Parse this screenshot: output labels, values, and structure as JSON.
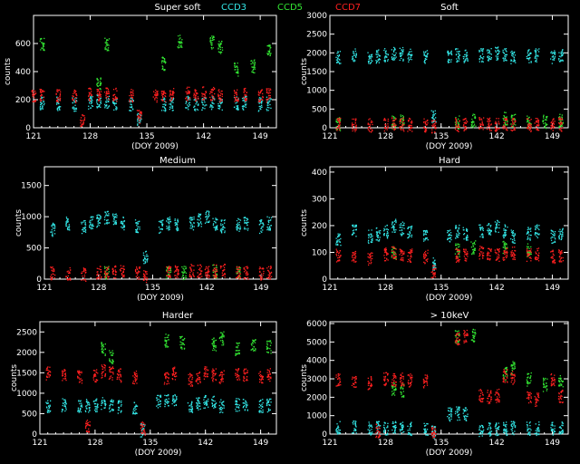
{
  "legend": [
    {
      "label": "CCD3",
      "color": "#33e6e6"
    },
    {
      "label": "CCD5",
      "color": "#33e633"
    },
    {
      "label": "CCD7",
      "color": "#ff2020"
    }
  ],
  "chart_data": [
    {
      "type": "scatter",
      "title": "Super soft",
      "xlabel": "(DOY 2009)",
      "ylabel": "counts",
      "xlim": [
        121,
        151
      ],
      "ylim": [
        0,
        800
      ],
      "xticks": [
        121,
        128,
        135,
        142,
        149
      ],
      "yticks": [
        0,
        200,
        400,
        600
      ],
      "series": [
        {
          "name": "CCD3",
          "color": "#33e6e6",
          "x": [
            122,
            124,
            126,
            128,
            129,
            130,
            131,
            133,
            134,
            137,
            138,
            140,
            141,
            142,
            143,
            144,
            146,
            147,
            149,
            150
          ],
          "y": [
            180,
            175,
            170,
            185,
            190,
            180,
            175,
            170,
            60,
            170,
            175,
            180,
            170,
            175,
            180,
            170,
            175,
            180,
            170,
            175
          ]
        },
        {
          "name": "CCD5",
          "color": "#33e633",
          "x": [
            122,
            129,
            130,
            137,
            139,
            143,
            144,
            146,
            148,
            150
          ],
          "y": [
            600,
            310,
            600,
            460,
            620,
            610,
            580,
            420,
            440,
            560
          ]
        },
        {
          "name": "CCD7",
          "color": "#ff2020",
          "x": [
            121,
            122,
            124,
            126,
            127,
            128,
            129,
            130,
            131,
            133,
            134,
            136,
            137,
            138,
            140,
            141,
            142,
            143,
            144,
            146,
            147,
            149,
            150
          ],
          "y": [
            230,
            240,
            230,
            225,
            60,
            240,
            245,
            250,
            240,
            230,
            80,
            230,
            235,
            240,
            245,
            240,
            250,
            245,
            230,
            235,
            240,
            230,
            235
          ]
        }
      ]
    },
    {
      "type": "scatter",
      "title": "Soft",
      "xlabel": "(DOY 2009)",
      "ylabel": "counts",
      "xlim": [
        121,
        151
      ],
      "ylim": [
        0,
        3000
      ],
      "xticks": [
        121,
        128,
        135,
        142,
        149
      ],
      "yticks": [
        0,
        500,
        1000,
        1500,
        2000,
        2500,
        3000
      ],
      "series": [
        {
          "name": "CCD3",
          "color": "#33e6e6",
          "x": [
            122,
            124,
            126,
            127,
            128,
            129,
            130,
            131,
            133,
            134,
            136,
            137,
            138,
            140,
            141,
            142,
            143,
            144,
            146,
            147,
            149,
            150
          ],
          "y": [
            1900,
            1950,
            1900,
            1920,
            1950,
            2000,
            1980,
            1950,
            1900,
            300,
            1900,
            1950,
            1920,
            1950,
            1980,
            2000,
            1950,
            1900,
            1920,
            1950,
            1900,
            1950
          ]
        },
        {
          "name": "CCD5",
          "color": "#33e633",
          "x": [
            122,
            129,
            130,
            137,
            139,
            143,
            144,
            146,
            148,
            150
          ],
          "y": [
            120,
            150,
            180,
            150,
            200,
            260,
            200,
            150,
            170,
            200
          ]
        },
        {
          "name": "CCD7",
          "color": "#ff2020",
          "x": [
            122,
            124,
            126,
            128,
            129,
            130,
            131,
            133,
            134,
            137,
            138,
            140,
            141,
            142,
            143,
            144,
            146,
            147,
            149,
            150
          ],
          "y": [
            100,
            90,
            80,
            100,
            110,
            100,
            90,
            80,
            40,
            90,
            100,
            110,
            100,
            90,
            100,
            110,
            90,
            100,
            90,
            100
          ]
        }
      ]
    },
    {
      "type": "scatter",
      "title": "Medium",
      "xlabel": "(DOY 2009)",
      "ylabel": "counts",
      "xlim": [
        121,
        151
      ],
      "ylim": [
        0,
        1800
      ],
      "xticks": [
        121,
        128,
        135,
        142,
        149
      ],
      "yticks": [
        0,
        500,
        1000,
        1500
      ],
      "series": [
        {
          "name": "CCD3",
          "color": "#33e6e6",
          "x": [
            122,
            124,
            126,
            127,
            128,
            129,
            130,
            131,
            133,
            134,
            136,
            137,
            138,
            140,
            141,
            142,
            143,
            144,
            146,
            147,
            149,
            150
          ],
          "y": [
            800,
            900,
            850,
            900,
            950,
            1000,
            950,
            900,
            850,
            350,
            850,
            900,
            880,
            900,
            950,
            1000,
            900,
            850,
            880,
            900,
            850,
            900
          ]
        },
        {
          "name": "CCD5",
          "color": "#33e633",
          "x": [
            129,
            137,
            139,
            143,
            146
          ],
          "y": [
            120,
            100,
            110,
            130,
            120
          ]
        },
        {
          "name": "CCD7",
          "color": "#ff2020",
          "x": [
            122,
            124,
            126,
            128,
            129,
            130,
            131,
            133,
            134,
            137,
            138,
            140,
            141,
            142,
            143,
            144,
            146,
            147,
            149,
            150
          ],
          "y": [
            100,
            90,
            80,
            110,
            120,
            130,
            120,
            110,
            40,
            120,
            130,
            140,
            130,
            120,
            130,
            140,
            120,
            110,
            100,
            110
          ]
        }
      ]
    },
    {
      "type": "scatter",
      "title": "Hard",
      "xlabel": "(DOY 2009)",
      "ylabel": "counts",
      "xlim": [
        121,
        151
      ],
      "ylim": [
        0,
        420
      ],
      "xticks": [
        121,
        128,
        135,
        142,
        149
      ],
      "yticks": [
        0,
        100,
        200,
        300,
        400
      ],
      "series": [
        {
          "name": "CCD3",
          "color": "#33e6e6",
          "x": [
            122,
            124,
            126,
            127,
            128,
            129,
            130,
            131,
            133,
            134,
            136,
            137,
            138,
            140,
            141,
            142,
            143,
            144,
            146,
            147,
            149,
            150
          ],
          "y": [
            150,
            180,
            160,
            170,
            180,
            200,
            190,
            180,
            160,
            60,
            160,
            180,
            170,
            180,
            190,
            200,
            180,
            160,
            170,
            180,
            160,
            170
          ]
        },
        {
          "name": "CCD5",
          "color": "#33e633",
          "x": [
            129,
            137,
            139,
            143,
            146
          ],
          "y": [
            100,
            110,
            120,
            120,
            110
          ]
        },
        {
          "name": "CCD7",
          "color": "#ff2020",
          "x": [
            122,
            124,
            126,
            128,
            129,
            130,
            131,
            133,
            134,
            137,
            138,
            140,
            141,
            142,
            143,
            144,
            146,
            147,
            149,
            150
          ],
          "y": [
            90,
            85,
            80,
            95,
            100,
            95,
            90,
            85,
            30,
            90,
            95,
            100,
            95,
            90,
            95,
            100,
            90,
            95,
            85,
            90
          ]
        }
      ]
    },
    {
      "type": "scatter",
      "title": "Harder",
      "xlabel": "(DOY 2009)",
      "ylabel": "counts",
      "xlim": [
        121,
        151
      ],
      "ylim": [
        0,
        2750
      ],
      "xticks": [
        121,
        128,
        135,
        142,
        149
      ],
      "yticks": [
        0,
        500,
        1000,
        1500,
        2000,
        2500
      ],
      "series": [
        {
          "name": "CCD3",
          "color": "#33e6e6",
          "x": [
            122,
            124,
            126,
            127,
            128,
            129,
            130,
            131,
            133,
            134,
            136,
            137,
            138,
            140,
            141,
            142,
            143,
            144,
            146,
            147,
            149,
            150
          ],
          "y": [
            700,
            720,
            680,
            700,
            720,
            750,
            700,
            680,
            650,
            100,
            800,
            850,
            820,
            700,
            750,
            800,
            780,
            700,
            720,
            750,
            700,
            720
          ]
        },
        {
          "name": "CCD5",
          "color": "#33e633",
          "x": [
            129,
            130,
            137,
            139,
            143,
            144,
            146,
            148,
            150
          ],
          "y": [
            2100,
            1900,
            2300,
            2250,
            2200,
            2350,
            2100,
            2200,
            2150
          ]
        },
        {
          "name": "CCD7",
          "color": "#ff2020",
          "x": [
            122,
            124,
            126,
            127,
            128,
            129,
            130,
            131,
            133,
            134,
            137,
            138,
            140,
            141,
            142,
            143,
            144,
            146,
            147,
            149,
            150
          ],
          "y": [
            1500,
            1450,
            1400,
            200,
            1450,
            1550,
            1500,
            1450,
            1400,
            150,
            1400,
            1500,
            1350,
            1400,
            1500,
            1450,
            1400,
            1500,
            1450,
            1400,
            1450
          ]
        }
      ]
    },
    {
      "type": "scatter",
      "title": "> 10keV",
      "xlabel": "(DOY 2009)",
      "ylabel": "counts",
      "xlim": [
        121,
        151
      ],
      "ylim": [
        0,
        6100
      ],
      "xticks": [
        121,
        128,
        135,
        142,
        149
      ],
      "yticks": [
        0,
        1000,
        2000,
        3000,
        4000,
        5000,
        6000
      ],
      "series": [
        {
          "name": "CCD3",
          "color": "#33e6e6",
          "x": [
            122,
            124,
            126,
            127,
            128,
            129,
            130,
            131,
            133,
            134,
            136,
            137,
            138,
            140,
            141,
            142,
            143,
            144,
            146,
            147,
            149,
            150
          ],
          "y": [
            350,
            380,
            330,
            350,
            340,
            360,
            330,
            320,
            300,
            100,
            1100,
            1150,
            1100,
            250,
            280,
            300,
            320,
            350,
            330,
            320,
            300,
            320
          ]
        },
        {
          "name": "CCD5",
          "color": "#33e633",
          "x": [
            129,
            130,
            137,
            139,
            143,
            144,
            146,
            148,
            150
          ],
          "y": [
            2500,
            2400,
            5300,
            5400,
            3300,
            3600,
            3000,
            2700,
            2900
          ]
        },
        {
          "name": "CCD7",
          "color": "#ff2020",
          "x": [
            122,
            124,
            126,
            127,
            128,
            129,
            130,
            131,
            133,
            134,
            137,
            138,
            140,
            141,
            142,
            143,
            144,
            146,
            147,
            149,
            150
          ],
          "y": [
            3000,
            2900,
            2800,
            200,
            3000,
            2950,
            3000,
            2950,
            2900,
            150,
            5200,
            5300,
            2100,
            2050,
            2100,
            3200,
            3100,
            2000,
            1900,
            3000,
            2100
          ]
        }
      ]
    }
  ]
}
